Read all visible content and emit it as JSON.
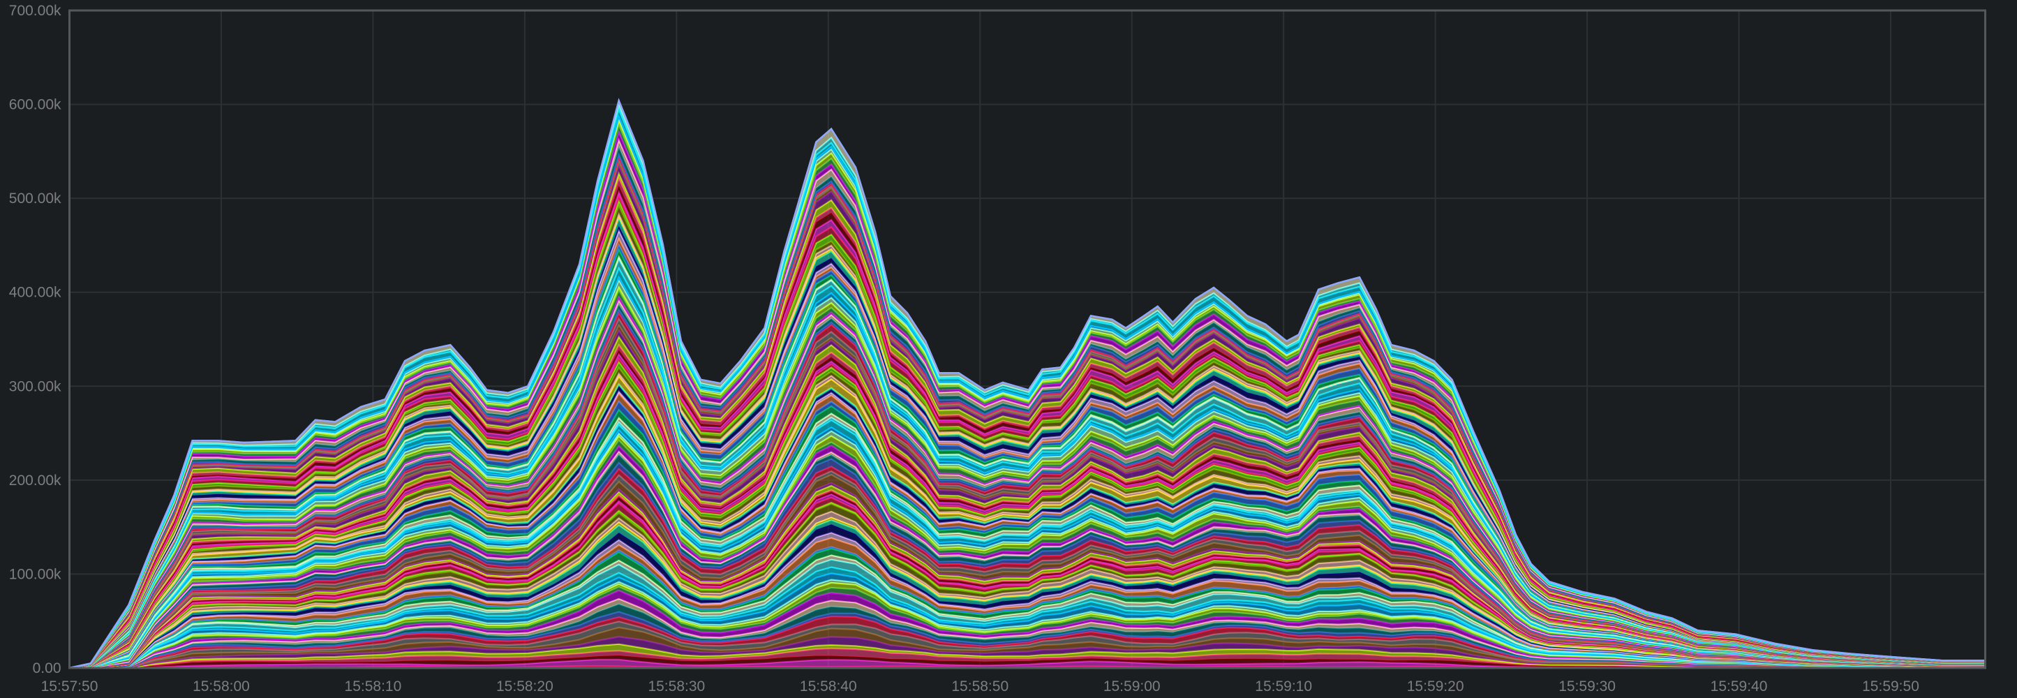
{
  "chart_data": {
    "type": "area",
    "stacked": true,
    "title": "",
    "xlabel": "",
    "ylabel": "",
    "grid": true,
    "legend": "none",
    "ylim": [
      0,
      700000
    ],
    "xlim": [
      "15:57:50",
      "15:59:56"
    ],
    "y_ticks": [
      "0.00",
      "100.00k",
      "200.00k",
      "300.00k",
      "400.00k",
      "500.00k",
      "600.00k",
      "700.00k"
    ],
    "x_ticks": [
      "15:57:50",
      "15:58:00",
      "15:58:10",
      "15:58:20",
      "15:58:30",
      "15:58:40",
      "15:58:50",
      "15:59:00",
      "15:59:10",
      "15:59:20",
      "15:59:30",
      "15:59:40",
      "15:59:50"
    ],
    "x": [
      "15:57:50.0",
      "15:57:51.4",
      "15:57:53.9",
      "15:57:55.6",
      "15:57:56.9",
      "15:57:58.1",
      "15:57:59.8",
      "15:58:01.5",
      "15:58:04.9",
      "15:58:06.2",
      "15:58:07.5",
      "15:58:09.2",
      "15:58:10.8",
      "15:58:12.1",
      "15:58:13.4",
      "15:58:15.1",
      "15:58:16.4",
      "15:58:17.5",
      "15:58:18.9",
      "15:58:20.2",
      "15:58:21.9",
      "15:58:23.6",
      "15:58:24.8",
      "15:58:26.2",
      "15:58:27.8",
      "15:58:29.1",
      "15:58:30.3",
      "15:58:31.6",
      "15:58:32.9",
      "15:58:34.2",
      "15:58:35.8",
      "15:58:37.1",
      "15:58:39.2",
      "15:58:40.2",
      "15:58:41.8",
      "15:58:43.1",
      "15:58:44.1",
      "15:58:45.2",
      "15:58:46.4",
      "15:58:47.3",
      "15:58:48.6",
      "15:58:50.3",
      "15:58:51.5",
      "15:58:53.2",
      "15:58:54.1",
      "15:58:55.3",
      "15:58:56.2",
      "15:58:57.3",
      "15:58:58.7",
      "15:58:59.6",
      "15:59:00.8",
      "15:59:01.7",
      "15:59:02.7",
      "15:59:04.2",
      "15:59:05.4",
      "15:59:06.4",
      "15:59:07.6",
      "15:59:08.8",
      "15:59:10.2",
      "15:59:11.0",
      "15:59:12.3",
      "15:59:13.6",
      "15:59:15.0",
      "15:59:16.1",
      "15:59:17.1",
      "15:59:18.6",
      "15:59:19.9",
      "15:59:21.1",
      "15:59:22.5",
      "15:59:24.2",
      "15:59:25.3",
      "15:59:26.3",
      "15:59:27.5",
      "15:59:29.7",
      "15:59:31.8",
      "15:59:33.9",
      "15:59:35.6",
      "15:59:37.3",
      "15:59:39.8",
      "15:59:42.4",
      "15:59:44.9",
      "15:59:47.5",
      "15:59:50.8",
      "15:59:53.4",
      "15:59:56.2"
    ],
    "series": [
      {
        "values": [
          0,
          5000,
          67000,
          136000,
          184000,
          242000,
          242000,
          240000,
          242000,
          264000,
          262000,
          278000,
          286000,
          327000,
          338000,
          344000,
          320000,
          296000,
          293000,
          300000,
          358000,
          430000,
          519000,
          604000,
          540000,
          451000,
          348000,
          307000,
          303000,
          327000,
          362000,
          444000,
          560000,
          574000,
          533000,
          464000,
          396000,
          378000,
          348000,
          314000,
          314000,
          296000,
          304000,
          296000,
          318000,
          320000,
          341000,
          375000,
          371000,
          362000,
          375000,
          385000,
          368000,
          393000,
          405000,
          392000,
          375000,
          366000,
          348000,
          355000,
          403000,
          410000,
          416000,
          382000,
          344000,
          338000,
          327000,
          307000,
          252000,
          190000,
          142000,
          111000,
          92000,
          81000,
          74000,
          60000,
          53000,
          40000,
          36000,
          26000,
          19000,
          15000,
          11000,
          8000,
          8000
        ]
      }
    ],
    "colors": [
      "#e6194b",
      "#3cb44b",
      "#ffe119",
      "#4363d8",
      "#f58231",
      "#911eb4",
      "#46f0f0",
      "#f032e6",
      "#bcf60c",
      "#fabebe",
      "#008080",
      "#e6beff",
      "#9a6324",
      "#fffac8",
      "#800000",
      "#aaffc3",
      "#808000",
      "#ffd8b1",
      "#000075",
      "#808080",
      "#00c853",
      "#ff4081",
      "#00b0ff",
      "#76ff03",
      "#d500f9",
      "#1de9b6",
      "#ff1744",
      "#2979ff",
      "#c6ff00",
      "#00e5ff"
    ]
  }
}
